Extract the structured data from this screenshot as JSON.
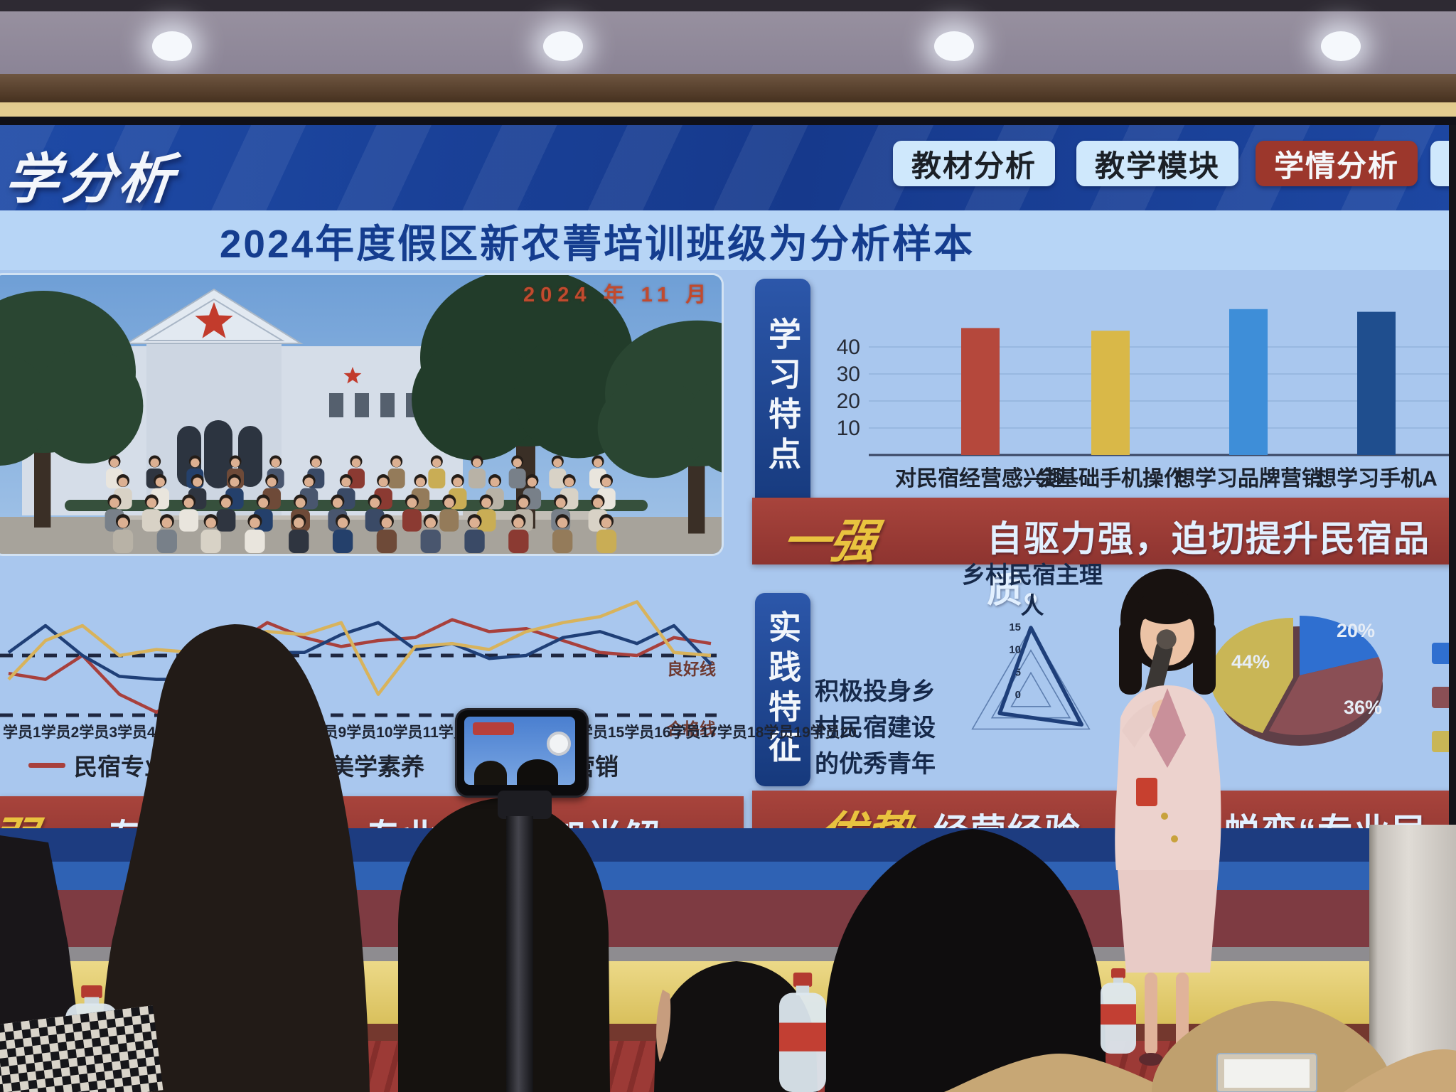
{
  "screen": {
    "watermark": "学分析",
    "tabs": [
      {
        "label": "教材分析",
        "active": false
      },
      {
        "label": "教学模块",
        "active": false
      },
      {
        "label": "学情分析",
        "active": true
      },
      {
        "label": "",
        "active": false
      }
    ],
    "title": "2024年度假区新农菁培训班级为分析样本",
    "photo_date": "2024 年 11 月",
    "learning_section": {
      "side_tab": "学习特点"
    },
    "practice_section": {
      "side_tab": "实践特征",
      "radar_axis_label": "乡村民宿主理人",
      "note": "积极投身乡村民宿建设的优秀青年"
    },
    "banners": {
      "strong": {
        "prefix": "一强",
        "text": "自驱力强，迫切提升民宿品质。"
      },
      "weak": {
        "prefix": "弱",
        "text": "专业基础较弱，专业知识一知半解。"
      },
      "advantage": {
        "prefix": "一优势",
        "text_fragment_1": "经营经验",
        "text_fragment_2": "蜕变“专业民宿"
      }
    },
    "line_legend": [
      "民宿专业规范",
      "民宿美学素养",
      "营销"
    ]
  },
  "chart_data": [
    {
      "id": "learning-traits-bar",
      "type": "bar",
      "categories": [
        "对民宿经营感兴趣",
        "会基础手机操作",
        "想学习品牌营销",
        "想学习手机A"
      ],
      "values": [
        47,
        46,
        54,
        53
      ],
      "colors": [
        "#b5483c",
        "#d9b848",
        "#3e8ed8",
        "#1f4e8e"
      ],
      "yticks": [
        10,
        20,
        30,
        40
      ],
      "ylim": [
        0,
        60
      ],
      "grid": true
    },
    {
      "id": "trainee-scores-line",
      "type": "line",
      "x": [
        "学员1",
        "学员2",
        "学员3",
        "学员4",
        "学员5",
        "学员6",
        "学员7",
        "学员8",
        "学员9",
        "学员10",
        "学员11",
        "学员12",
        "学员13",
        "学员14",
        "学员15",
        "学员16",
        "学员17",
        "学员18",
        "学员19",
        "学员20"
      ],
      "series": [
        {
          "name": "民宿专业规范",
          "color": "#a8403c",
          "values": [
            74,
            72,
            80,
            67,
            61,
            68,
            83,
            91,
            86,
            83,
            85,
            86,
            92,
            88,
            89,
            85,
            81,
            80,
            86,
            84
          ]
        },
        {
          "name": "民宿美学素养",
          "color": "#1f3f77",
          "values": [
            81,
            90,
            80,
            73,
            72,
            72,
            65,
            81,
            81,
            87,
            91,
            82,
            84,
            79,
            80,
            86,
            88,
            84,
            90,
            77
          ]
        },
        {
          "name": "营销",
          "color": "#d8b35c",
          "values": [
            72,
            85,
            90,
            80,
            82,
            81,
            86,
            88,
            87,
            91,
            67,
            83,
            84,
            82,
            88,
            91,
            93,
            98,
            81,
            80
          ]
        }
      ],
      "reference_lines": [
        {
          "label": "良好线",
          "value": 80
        },
        {
          "label": "合格线",
          "value": 60
        }
      ],
      "ylim": [
        55,
        105
      ],
      "grid": false,
      "legend_position": "bottom"
    },
    {
      "id": "practice-radar",
      "type": "radar",
      "axes": [
        "乡村民宿主理人",
        "",
        ""
      ],
      "ticks": [
        0,
        5,
        10,
        15
      ],
      "values": [
        15,
        8,
        13
      ],
      "color": "#1e3f7a"
    },
    {
      "id": "practice-pie",
      "type": "pie",
      "style": "3d",
      "slices": [
        {
          "label": "20%",
          "value": 20,
          "color": "#2f6fd0"
        },
        {
          "label": "36%",
          "value": 36,
          "color": "#8a4f55"
        },
        {
          "label": "44%",
          "value": 44,
          "color": "#c9b656"
        }
      ],
      "legend_position": "right"
    }
  ],
  "colors": {
    "slide_bg": "#a9c7ee",
    "header_blue": "#1c4499",
    "title_band": "#b7d5f6",
    "title_text": "#153d8f",
    "tab_bg": "#cfe8fc",
    "active_tab_red": "#9c372c",
    "banner_red": "#9c3f38",
    "banner_prefix_yellow": "#e9c33f",
    "banner_text": "#e2f0ff",
    "wall_gold": "#e3cc90",
    "wall_lower_yellow": "#e5cf74",
    "carpet_red": "#9c3a36"
  }
}
